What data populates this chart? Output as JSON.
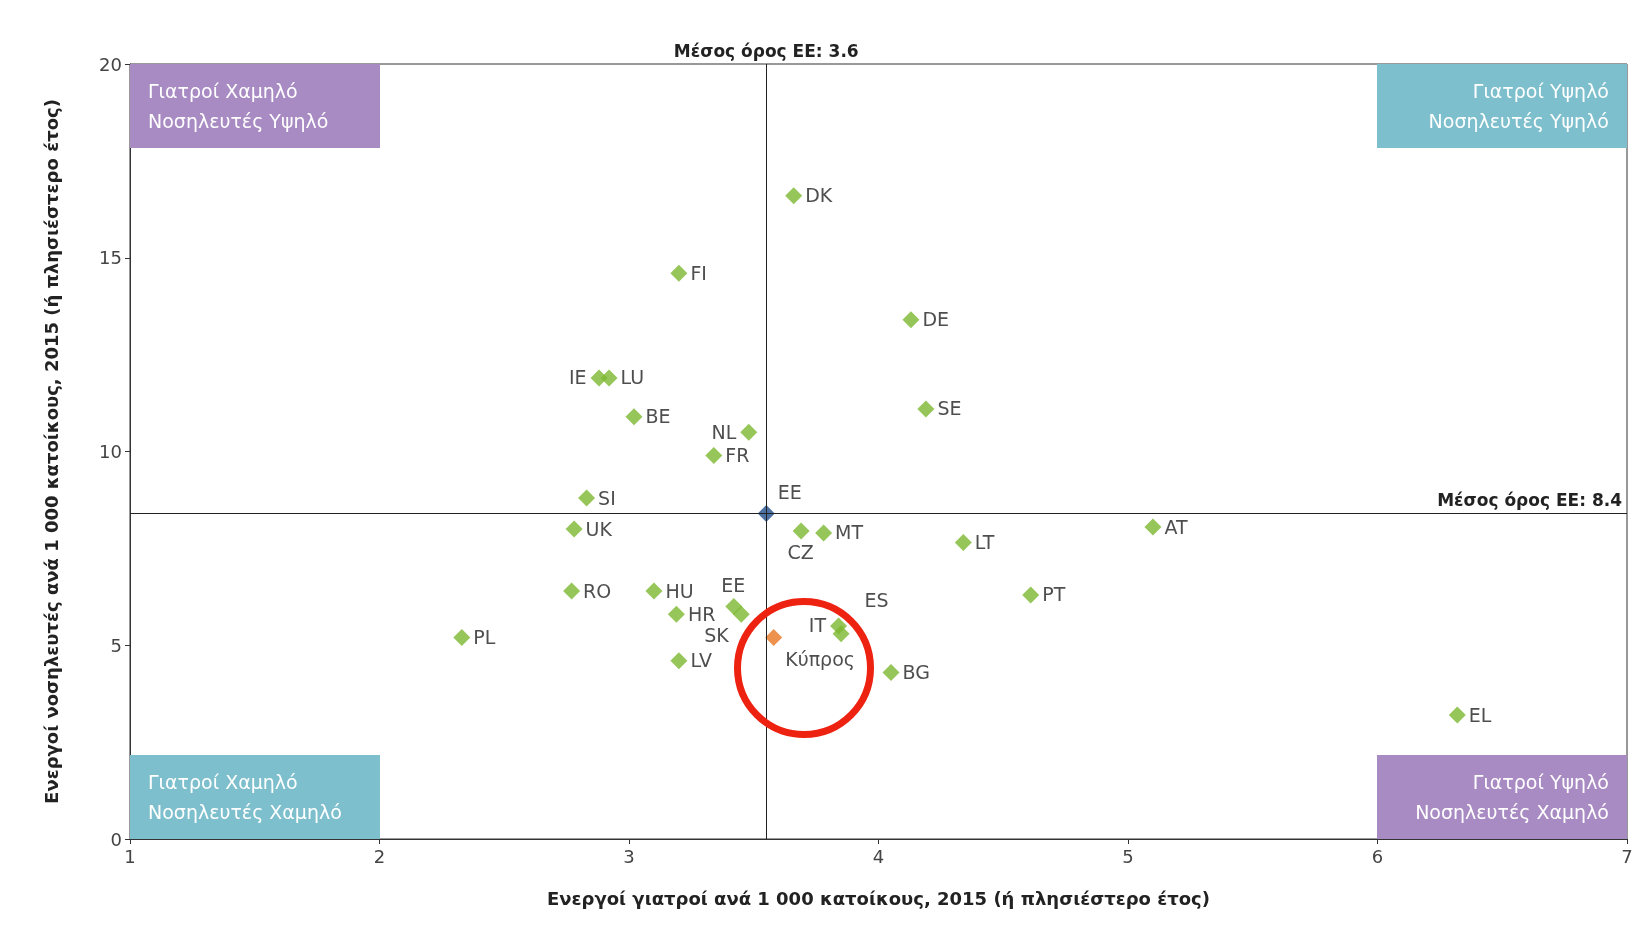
{
  "chart_data": {
    "type": "scatter",
    "xlabel": "Ενεργοί γιατροί ανά 1 000 κατοίκους, 2015 (ή πλησιέστερο έτος)",
    "ylabel": "Ενεργοί νοσηλευτές ανά 1 000 κατοίκους, 2015 (ή πλησιέστερο έτος)",
    "xlim": [
      1,
      7
    ],
    "xticks": [
      1,
      2,
      3,
      4,
      5,
      6,
      7
    ],
    "ylim": [
      0,
      20
    ],
    "yticks": [
      0,
      5,
      10,
      15,
      20
    ],
    "grid": false,
    "marker": "diamond",
    "series": [
      {
        "color": "#7cb82f",
        "x": [
          3.66,
          3.2,
          4.13,
          2.88,
          2.92,
          4.19,
          3.02,
          3.48,
          3.34,
          2.83,
          2.78,
          3.69,
          3.78,
          4.34,
          5.1,
          3.1,
          2.77,
          4.61,
          3.42,
          3.45,
          3.19,
          2.33,
          3.84,
          3.85,
          3.2,
          4.05,
          6.32
        ],
        "values": [
          16.6,
          14.6,
          13.4,
          11.9,
          11.9,
          11.1,
          10.9,
          10.5,
          9.9,
          8.8,
          8.0,
          7.95,
          7.9,
          7.65,
          8.05,
          6.4,
          6.4,
          6.3,
          6.0,
          5.8,
          5.8,
          5.2,
          5.5,
          5.3,
          4.6,
          4.3,
          3.2
        ]
      },
      {
        "color": "#1f4e8c",
        "x": [
          3.55
        ],
        "values": [
          8.4
        ]
      },
      {
        "color": "#e87722",
        "x": [
          3.58
        ],
        "values": [
          5.2
        ]
      }
    ],
    "ref_lines": [
      {
        "axis": "x",
        "value": 3.55,
        "label": "Μέσος όρος ΕΕ: 3.6"
      },
      {
        "axis": "y",
        "value": 8.4,
        "label": "Μέσος όρος ΕΕ: 8.4"
      }
    ],
    "annotations": [
      "Γιατροί Χαμηλό\nΝοσηλευτές Υψηλό",
      "Γιατροί Υψηλό\nΝοσηλευτές Υψηλό",
      "Γιατροί Χαμηλό\nΝοσηλευτές Χαμηλό",
      "Γιατροί Υψηλό\nΝοσηλευτές Χαμηλό",
      {
        "text": "DK",
        "x": 3.66,
        "y": 16.6
      },
      {
        "text": "FI",
        "x": 3.2,
        "y": 14.6
      },
      {
        "text": "DE",
        "x": 4.13,
        "y": 13.4
      },
      {
        "text": "IE",
        "x": 2.88,
        "y": 11.9
      },
      {
        "text": "LU",
        "x": 2.92,
        "y": 11.9
      },
      {
        "text": "SE",
        "x": 4.19,
        "y": 11.1
      },
      {
        "text": "BE",
        "x": 3.02,
        "y": 10.9
      },
      {
        "text": "NL",
        "x": 3.48,
        "y": 10.5
      },
      {
        "text": "FR",
        "x": 3.34,
        "y": 9.9
      },
      {
        "text": "SI",
        "x": 2.83,
        "y": 8.8
      },
      {
        "text": "EE",
        "x": 3.55,
        "y": 8.4
      },
      {
        "text": "UK",
        "x": 2.78,
        "y": 8.0
      },
      {
        "text": "CZ",
        "x": 3.69,
        "y": 7.95
      },
      {
        "text": "MT",
        "x": 3.78,
        "y": 7.9
      },
      {
        "text": "LT",
        "x": 4.34,
        "y": 7.65
      },
      {
        "text": "AT",
        "x": 5.1,
        "y": 8.05
      },
      {
        "text": "HU",
        "x": 3.1,
        "y": 6.4
      },
      {
        "text": "RO",
        "x": 2.77,
        "y": 6.4
      },
      {
        "text": "PT",
        "x": 4.61,
        "y": 6.3
      },
      {
        "text": "EE",
        "x": 3.42,
        "y": 6.0
      },
      {
        "text": "SK",
        "x": 3.45,
        "y": 5.8
      },
      {
        "text": "HR",
        "x": 3.19,
        "y": 5.8
      },
      {
        "text": "PL",
        "x": 2.33,
        "y": 5.2
      },
      {
        "text": "IT",
        "x": 3.84,
        "y": 5.5
      },
      {
        "text": "ES",
        "x": 3.85,
        "y": 5.3
      },
      {
        "text": "LV",
        "x": 3.2,
        "y": 4.6
      },
      {
        "text": "BG",
        "x": 4.05,
        "y": 4.3
      },
      {
        "text": "EL",
        "x": 6.32,
        "y": 3.2
      },
      {
        "text": "Κύπρος",
        "x": 3.58,
        "y": 5.2
      }
    ]
  }
}
